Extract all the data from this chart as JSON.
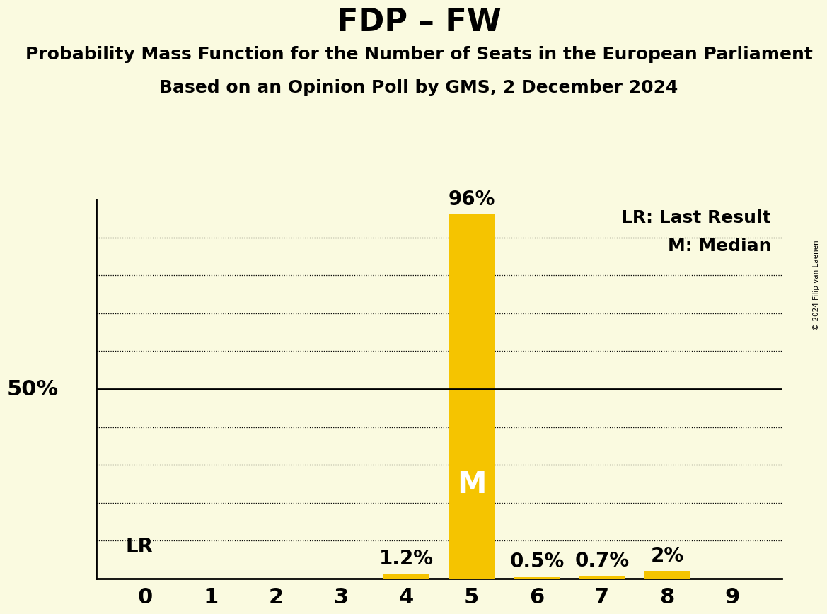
{
  "title": "FDP – FW",
  "subtitle1": "Probability Mass Function for the Number of Seats in the European Parliament",
  "subtitle2": "Based on an Opinion Poll by GMS, 2 December 2024",
  "copyright": "© 2024 Filip van Laenen",
  "seats": [
    0,
    1,
    2,
    3,
    4,
    5,
    6,
    7,
    8,
    9
  ],
  "probabilities": [
    0.0,
    0.0,
    0.0,
    0.0,
    1.2,
    96.0,
    0.5,
    0.7,
    2.0,
    0.0
  ],
  "bar_color": "#F5C400",
  "median_seat": 5,
  "median_label": "M",
  "lr_label": "LR",
  "legend_lr": "LR: Last Result",
  "legend_m": "M: Median",
  "background_color": "#FAFAE0",
  "bar_width": 0.7,
  "ylim": [
    0,
    100
  ],
  "ytick_50_label": "50%",
  "title_fontsize": 32,
  "subtitle_fontsize": 18,
  "annotation_fontsize": 20,
  "legend_fontsize": 18,
  "tick_fontsize": 22
}
